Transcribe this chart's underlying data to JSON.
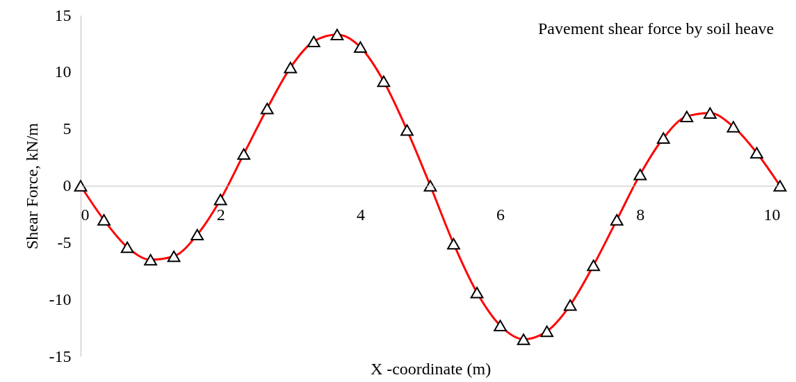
{
  "chart_data": {
    "type": "line",
    "xlabel": "X -coordinate (m)",
    "ylabel": "Shear Force, kN/m",
    "x": [
      0,
      0.333,
      0.667,
      1,
      1.333,
      1.667,
      2,
      2.333,
      2.667,
      3,
      3.333,
      3.667,
      4,
      4.333,
      4.667,
      5,
      5.333,
      5.667,
      6,
      6.333,
      6.667,
      7,
      7.333,
      7.667,
      8,
      8.333,
      8.667,
      9,
      9.333,
      9.667,
      10
    ],
    "series": [
      {
        "name": "Pavement shear force by soil heave",
        "color": "#ff0000",
        "values": [
          0,
          -3,
          -5.4,
          -6.5,
          -6.2,
          -4.3,
          -1.2,
          2.8,
          6.8,
          10.4,
          12.7,
          13.3,
          12.2,
          9.2,
          4.9,
          0,
          -5.1,
          -9.4,
          -12.3,
          -13.5,
          -12.8,
          -10.5,
          -7,
          -3,
          1,
          4.2,
          6.1,
          6.4,
          5.2,
          2.9,
          0
        ]
      }
    ],
    "xlim": [
      0,
      10
    ],
    "xticks": [
      0,
      2,
      4,
      6,
      8,
      10
    ],
    "ylim": [
      -15,
      15
    ],
    "yticks": [
      -15,
      -10,
      -5,
      0,
      5,
      10,
      15
    ],
    "legend": "top right",
    "marker": "triangle",
    "line_style": "solid"
  }
}
